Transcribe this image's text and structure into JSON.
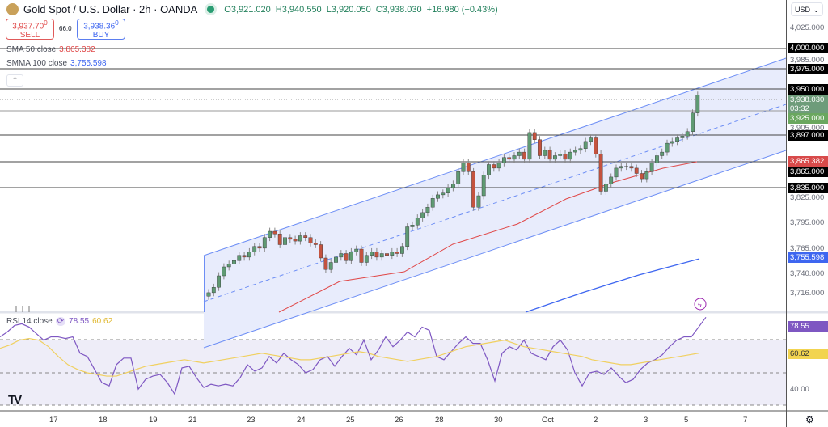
{
  "header": {
    "title": "Gold Spot / U.S. Dollar · 2h · OANDA",
    "open": "O3,921.020",
    "high": "H3,940.550",
    "low": "L3,920.050",
    "close": "C3,938.030",
    "change": "+16.980 (+0.43%)"
  },
  "trade": {
    "sell_price": "3,937.70",
    "sell_sup": "0",
    "sell_label": "SELL",
    "spread": "66.0",
    "buy_price": "3,938.36",
    "buy_sup": "0",
    "buy_label": "BUY"
  },
  "indicators": [
    {
      "name": "SMA 50 close",
      "value": "3,865.382",
      "color": "#e04848"
    },
    {
      "name": "SMMA 100 close",
      "value": "3,755.598",
      "color": "#3e66f0"
    }
  ],
  "rsi": {
    "name": "RSI 14 close",
    "value": "78.55",
    "ma": "60.62",
    "scale_label": "40.00"
  },
  "price_axis": {
    "currency": "USD",
    "labels": [
      "4,025.000",
      "3,985.000",
      "3,905.000",
      "3,825.000",
      "3,795.000",
      "3,765.000",
      "3,740.000",
      "3,716.000"
    ],
    "levels": [
      "4,000.000",
      "3,975.000",
      "3,950.000",
      "3,897.000",
      "3,865.000",
      "3,835.000"
    ],
    "current": "3,938.030",
    "countdown": "03:32",
    "green_label": "3,925.000",
    "sma_label": "3,865.382",
    "smma_label": "3,755.598"
  },
  "time_axis": [
    "17",
    "18",
    "19",
    "21",
    "23",
    "24",
    "25",
    "26",
    "28",
    "30",
    "Oct",
    "2",
    "3",
    "5",
    "7"
  ],
  "colors": {
    "up": "#5f9a73",
    "down": "#c4533f",
    "sma": "#e04848",
    "smma": "#3e66f0",
    "rsi": "#7e57c2",
    "rsi_ma": "#f0d060",
    "channel": "#6d8ef5"
  },
  "chart_data": {
    "type": "candlestick",
    "closes": [
      3716,
      3722,
      3735,
      3745,
      3748,
      3752,
      3758,
      3756,
      3762,
      3768,
      3766,
      3778,
      3785,
      3782,
      3770,
      3778,
      3776,
      3774,
      3780,
      3778,
      3772,
      3770,
      3755,
      3742,
      3750,
      3756,
      3760,
      3752,
      3762,
      3765,
      3750,
      3758,
      3762,
      3756,
      3760,
      3758,
      3762,
      3760,
      3768,
      3790,
      3792,
      3800,
      3806,
      3812,
      3822,
      3826,
      3828,
      3834,
      3838,
      3852,
      3862,
      3852,
      3812,
      3825,
      3848,
      3860,
      3856,
      3862,
      3868,
      3866,
      3870,
      3874,
      3866,
      3896,
      3888,
      3870,
      3876,
      3866,
      3870,
      3872,
      3866,
      3874,
      3876,
      3878,
      3886,
      3890,
      3872,
      3830,
      3838,
      3846,
      3856,
      3858,
      3858,
      3856,
      3850,
      3844,
      3852,
      3862,
      3870,
      3874,
      3884,
      3886,
      3890,
      3892,
      3897,
      3918,
      3938
    ]
  }
}
